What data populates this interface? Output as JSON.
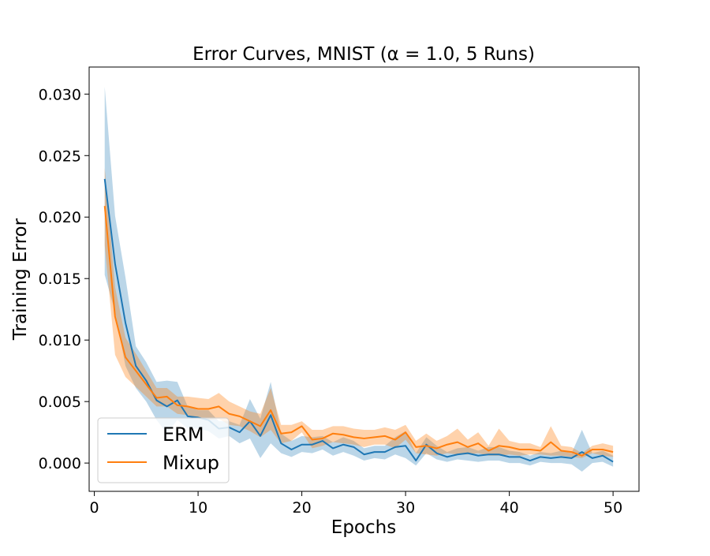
{
  "chart_data": {
    "type": "line",
    "title": "Error Curves, MNIST (α = 1.0, 5 Runs)",
    "xlabel": "Epochs",
    "ylabel": "Training Error",
    "xlim": [
      -0.5,
      52.5
    ],
    "ylim": [
      -0.0023,
      0.0322
    ],
    "xticks": [
      0,
      10,
      20,
      30,
      40,
      50
    ],
    "xtick_labels": [
      "0",
      "10",
      "20",
      "30",
      "40",
      "50"
    ],
    "yticks": [
      0.0,
      0.005,
      0.01,
      0.015,
      0.02,
      0.025,
      0.03
    ],
    "ytick_labels": [
      "0.000",
      "0.005",
      "0.010",
      "0.015",
      "0.020",
      "0.025",
      "0.030"
    ],
    "grid": false,
    "legend_position": "bottom-left",
    "x": [
      1,
      2,
      3,
      4,
      5,
      6,
      7,
      8,
      9,
      10,
      11,
      12,
      13,
      14,
      15,
      16,
      17,
      18,
      19,
      20,
      21,
      22,
      23,
      24,
      25,
      26,
      27,
      28,
      29,
      30,
      31,
      32,
      33,
      34,
      35,
      36,
      37,
      38,
      39,
      40,
      41,
      42,
      43,
      44,
      45,
      46,
      47,
      48,
      49,
      50
    ],
    "series": [
      {
        "name": "ERM",
        "color": "#1f77b4",
        "band_color": "#1f77b4",
        "values": [
          0.0231,
          0.0162,
          0.0114,
          0.0079,
          0.0067,
          0.0051,
          0.0046,
          0.0051,
          0.0038,
          0.0037,
          0.0035,
          0.0028,
          0.0029,
          0.0025,
          0.0034,
          0.0022,
          0.0039,
          0.0016,
          0.0011,
          0.0015,
          0.0015,
          0.0018,
          0.0012,
          0.0015,
          0.0013,
          0.0007,
          0.0009,
          0.0009,
          0.0013,
          0.0014,
          0.0002,
          0.0015,
          0.0008,
          0.0005,
          0.0007,
          0.0008,
          0.0006,
          0.0007,
          0.0007,
          0.0005,
          0.0005,
          0.0002,
          0.0005,
          0.0004,
          0.0005,
          0.0004,
          0.0009,
          0.0004,
          0.0006,
          0.0001
        ],
        "upper": [
          0.0306,
          0.0201,
          0.0151,
          0.0095,
          0.0082,
          0.0066,
          0.0067,
          0.0066,
          0.0046,
          0.0043,
          0.0043,
          0.0034,
          0.0034,
          0.0031,
          0.0052,
          0.0036,
          0.0066,
          0.0024,
          0.0018,
          0.0022,
          0.0021,
          0.0022,
          0.0017,
          0.0021,
          0.0018,
          0.0012,
          0.0014,
          0.0014,
          0.0021,
          0.0026,
          0.0008,
          0.0021,
          0.0014,
          0.0009,
          0.0012,
          0.0013,
          0.001,
          0.0013,
          0.0013,
          0.001,
          0.0009,
          0.0006,
          0.0009,
          0.0008,
          0.001,
          0.0008,
          0.0027,
          0.0008,
          0.001,
          0.0006
        ],
        "lower": [
          0.0153,
          0.0123,
          0.0079,
          0.0061,
          0.005,
          0.0035,
          0.0024,
          0.0035,
          0.0028,
          0.0028,
          0.0026,
          0.002,
          0.0022,
          0.0016,
          0.002,
          0.0004,
          0.0016,
          0.0008,
          0.0005,
          0.0009,
          0.0008,
          0.0011,
          0.0006,
          0.0009,
          0.0006,
          0.0002,
          0.0004,
          0.0003,
          0.0007,
          0.0004,
          -0.0002,
          0.0008,
          0.0003,
          0.0001,
          0.0003,
          0.0002,
          0.0001,
          0.0002,
          0.0002,
          0.0,
          0.0,
          -0.0002,
          0.0001,
          0.0,
          0.0,
          -0.0001,
          -0.0007,
          0.0,
          0.0001,
          -0.0003
        ]
      },
      {
        "name": "Mixup",
        "color": "#ff7f0e",
        "band_color": "#ff7f0e",
        "values": [
          0.0209,
          0.0119,
          0.0086,
          0.0075,
          0.0064,
          0.0053,
          0.0054,
          0.0047,
          0.0046,
          0.0044,
          0.0044,
          0.0046,
          0.004,
          0.0038,
          0.0034,
          0.003,
          0.0043,
          0.0024,
          0.0025,
          0.003,
          0.0019,
          0.002,
          0.0024,
          0.0023,
          0.0021,
          0.002,
          0.0021,
          0.0022,
          0.0019,
          0.0025,
          0.0013,
          0.0014,
          0.0012,
          0.0015,
          0.0017,
          0.0013,
          0.0016,
          0.001,
          0.0014,
          0.0013,
          0.0011,
          0.0011,
          0.001,
          0.0017,
          0.001,
          0.0009,
          0.0006,
          0.0011,
          0.0011,
          0.0009
        ],
        "upper": [
          0.024,
          0.0143,
          0.0102,
          0.0089,
          0.0075,
          0.0061,
          0.0061,
          0.0054,
          0.0054,
          0.0053,
          0.0052,
          0.0057,
          0.005,
          0.0046,
          0.0042,
          0.004,
          0.0061,
          0.0031,
          0.0031,
          0.0034,
          0.0027,
          0.0027,
          0.003,
          0.003,
          0.0028,
          0.0027,
          0.0027,
          0.0029,
          0.0027,
          0.0031,
          0.0018,
          0.0024,
          0.0018,
          0.0022,
          0.0028,
          0.0019,
          0.0025,
          0.0014,
          0.0028,
          0.0018,
          0.0016,
          0.0016,
          0.0013,
          0.003,
          0.0014,
          0.0013,
          0.0008,
          0.0014,
          0.0016,
          0.0014
        ],
        "lower": [
          0.0177,
          0.0088,
          0.007,
          0.0062,
          0.0054,
          0.0046,
          0.0046,
          0.004,
          0.0039,
          0.0036,
          0.0035,
          0.0036,
          0.0031,
          0.003,
          0.0026,
          0.0021,
          0.0027,
          0.0016,
          0.0018,
          0.0025,
          0.0012,
          0.0014,
          0.0017,
          0.0016,
          0.0015,
          0.0013,
          0.0015,
          0.0015,
          0.0012,
          0.0019,
          0.0008,
          0.0007,
          0.0006,
          0.0008,
          0.0007,
          0.0007,
          0.0008,
          0.0006,
          0.0006,
          0.0007,
          0.0006,
          0.0007,
          0.0007,
          0.0006,
          0.0006,
          0.0005,
          0.0004,
          0.0008,
          0.0006,
          0.0005
        ]
      }
    ]
  }
}
